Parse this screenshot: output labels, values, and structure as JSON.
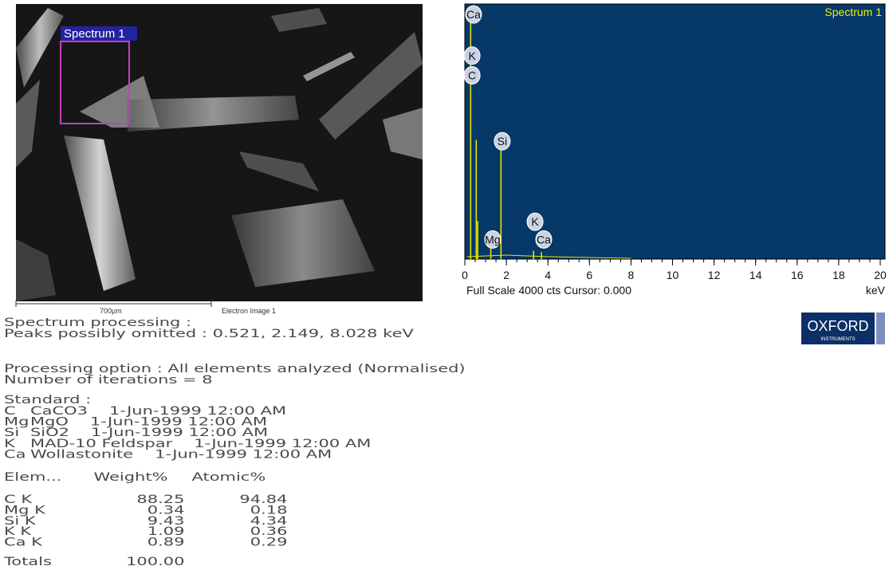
{
  "sem_image": {
    "region_label": "Spectrum 1",
    "scale_bar": "700µm",
    "caption": "Electron Image 1"
  },
  "spectrum": {
    "title": "Spectrum 1",
    "xlim": [
      0,
      20
    ],
    "ylim": [
      0,
      4000
    ],
    "xticks": [
      0,
      2,
      4,
      6,
      8,
      10,
      12,
      14,
      16,
      18,
      20
    ],
    "x_unit": "keV",
    "footer": "Full Scale 4000 cts Cursor: 0.000",
    "lines": [
      {
        "kev": 0.28,
        "cts": 3950
      },
      {
        "kev": 0.55,
        "cts": 1880
      },
      {
        "kev": 0.62,
        "cts": 600
      },
      {
        "kev": 1.25,
        "cts": 250
      },
      {
        "kev": 1.74,
        "cts": 1780
      },
      {
        "kev": 3.31,
        "cts": 130
      },
      {
        "kev": 3.69,
        "cts": 110
      }
    ],
    "peak_labels": [
      {
        "element": "Ca",
        "kev": 0.42,
        "cts": 3860
      },
      {
        "element": "K",
        "kev": 0.35,
        "cts": 3210
      },
      {
        "element": "C",
        "kev": 0.35,
        "cts": 2900
      },
      {
        "element": "Si",
        "kev": 1.8,
        "cts": 1860
      },
      {
        "element": "Mg",
        "kev": 1.34,
        "cts": 310
      },
      {
        "element": "K",
        "kev": 3.38,
        "cts": 590
      },
      {
        "element": "Ca",
        "kev": 3.8,
        "cts": 310
      }
    ]
  },
  "logo": {
    "name": "OXFORD",
    "subtitle": "INSTRUMENTS"
  },
  "processing": {
    "heading": "Spectrum processing :",
    "omitted": "Peaks possibly omitted : 0.521, 2.149, 8.028 keV",
    "option": "Processing option : All elements analyzed (Normalised)",
    "iterations": "Number of iterations = 8"
  },
  "standard": {
    "heading": "Standard :",
    "rows": [
      [
        "C",
        "CaCO3",
        "1-Jun-1999 12:00 AM"
      ],
      [
        "Mg",
        "MgO",
        "1-Jun-1999 12:00 AM"
      ],
      [
        "Si",
        "SiO2",
        "1-Jun-1999 12:00 AM"
      ],
      [
        "K",
        "MAD-10 Feldspar",
        "1-Jun-1999 12:00 AM"
      ],
      [
        "Ca",
        "Wollastonite",
        "1-Jun-1999 12:00 AM"
      ]
    ]
  },
  "table": {
    "columns": [
      "Elem...",
      "Weight%",
      "Atomic%"
    ],
    "rows": [
      [
        "C K",
        "88.25",
        "94.84"
      ],
      [
        "Mg K",
        "0.34",
        "0.18"
      ],
      [
        "Si K",
        "9.43",
        "4.34"
      ],
      [
        "K K",
        "1.09",
        "0.36"
      ],
      [
        "Ca K",
        "0.89",
        "0.29"
      ]
    ],
    "totals": [
      "Totals",
      "100.00"
    ]
  }
}
